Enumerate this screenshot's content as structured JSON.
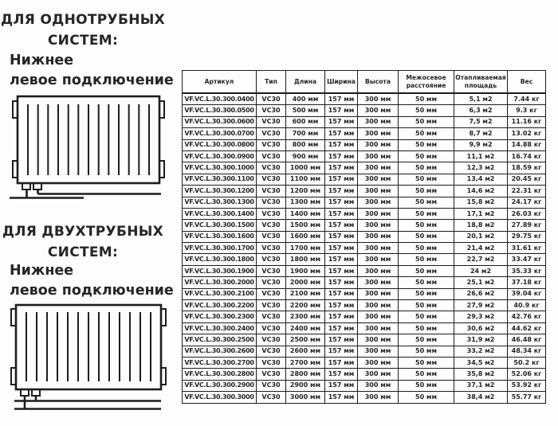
{
  "colors": {
    "text": "#262626",
    "border": "#1d1d1d",
    "background": "#ffffff"
  },
  "sections": [
    {
      "title_line1": "ДЛЯ ОДНОТРУБНЫХ",
      "title_line2": "СИСТЕМ:",
      "subtitle_line1": "Нижнее",
      "subtitle_line2": "левое подключение",
      "diagram": "radiator-bottom-left-single-pipe"
    },
    {
      "title_line1": "ДЛЯ ДВУХТРУБНЫХ",
      "title_line2": "СИСТЕМ:",
      "subtitle_line1": "Нижнее",
      "subtitle_line2": "левое подключение",
      "diagram": "radiator-bottom-left-two-pipe"
    }
  ],
  "table": {
    "headers": [
      "Артикул",
      "Тип",
      "Длина",
      "Ширина",
      "Высота",
      "Межосевое расстояние",
      "Отапливаемая площадь",
      "Вес"
    ],
    "rows": [
      [
        "VF.VC.L.30.300.0400",
        "VC30",
        "400 мм",
        "157 мм",
        "300 мм",
        "50 мм",
        "5,1 м2",
        "7.44 кг"
      ],
      [
        "VF.VC.L.30.300.0500",
        "VC30",
        "500 мм",
        "157 мм",
        "300 мм",
        "50 мм",
        "6,3 м2",
        "9.3 кг"
      ],
      [
        "VF.VC.L.30.300.0600",
        "VC30",
        "600 мм",
        "157 мм",
        "300 мм",
        "50 мм",
        "7,5 м2",
        "11.16 кг"
      ],
      [
        "VF.VC.L.30.300.0700",
        "VC30",
        "700 мм",
        "157 мм",
        "300 мм",
        "50 мм",
        "8,7 м2",
        "13.02 кг"
      ],
      [
        "VF.VC.L.30.300.0800",
        "VC30",
        "800 мм",
        "157 мм",
        "300 мм",
        "50 мм",
        "9,9 м2",
        "14.88 кг"
      ],
      [
        "VF.VC.L.30.300.0900",
        "VC30",
        "900 мм",
        "157 мм",
        "300 мм",
        "50 мм",
        "11,1 м2",
        "16.74 кг"
      ],
      [
        "VF.VC.L.30.300.1000",
        "VC30",
        "1000 мм",
        "157 мм",
        "300 мм",
        "50 мм",
        "12,3 м2",
        "18.59 кг"
      ],
      [
        "VF.VC.L.30.300.1100",
        "VC30",
        "1100 мм",
        "157 мм",
        "300 мм",
        "50 мм",
        "13,4 м2",
        "20.45 кг"
      ],
      [
        "VF.VC.L.30.300.1200",
        "VC30",
        "1200 мм",
        "157 мм",
        "300 мм",
        "50 мм",
        "14,6 м2",
        "22.31 кг"
      ],
      [
        "VF.VC.L.30.300.1300",
        "VC30",
        "1300 мм",
        "157 мм",
        "300 мм",
        "50 мм",
        "15,8 м2",
        "24.17 кг"
      ],
      [
        "VF.VC.L.30.300.1400",
        "VC30",
        "1400 мм",
        "157 мм",
        "300 мм",
        "50 мм",
        "17,1 м2",
        "26.03 кг"
      ],
      [
        "VF.VC.L.30.300.1500",
        "VC30",
        "1500 мм",
        "157 мм",
        "300 мм",
        "50 мм",
        "18,8 м2",
        "27.89 кг"
      ],
      [
        "VF.VC.L.30.300.1600",
        "VC30",
        "1600 мм",
        "157 мм",
        "300 мм",
        "50 мм",
        "20,1 м2",
        "29.75 кг"
      ],
      [
        "VF.VC.L.30.300.1700",
        "VC30",
        "1700 мм",
        "157 мм",
        "300 мм",
        "50 мм",
        "21,4 м2",
        "31.61 кг"
      ],
      [
        "VF.VC.L.30.300.1800",
        "VC30",
        "1800 мм",
        "157 мм",
        "300 мм",
        "50 мм",
        "22,7 м2",
        "33.47 кг"
      ],
      [
        "VF.VC.L.30.300.1900",
        "VC30",
        "1900 мм",
        "157 мм",
        "300 мм",
        "50 мм",
        "24 м2",
        "35.33 кг"
      ],
      [
        "VF.VC.L.30.300.2000",
        "VC30",
        "2000 мм",
        "157 мм",
        "300 мм",
        "50 мм",
        "25,1 м2",
        "37.18 кг"
      ],
      [
        "VF.VC.L.30.300.2100",
        "VC30",
        "2100 мм",
        "157 мм",
        "300 мм",
        "50 мм",
        "26,6 м2",
        "39.04 кг"
      ],
      [
        "VF.VC.L.30.300.2200",
        "VC30",
        "2200 мм",
        "157 мм",
        "300 мм",
        "50 мм",
        "27,9 м2",
        "40.9 кг"
      ],
      [
        "VF.VC.L.30.300.2300",
        "VC30",
        "2300 мм",
        "157 мм",
        "300 мм",
        "50 мм",
        "29,3 м2",
        "42.76 кг"
      ],
      [
        "VF.VC.L.30.300.2400",
        "VC30",
        "2400 мм",
        "157 мм",
        "300 мм",
        "50 мм",
        "30,6 м2",
        "44.62 кг"
      ],
      [
        "VF.VC.L.30.300.2500",
        "VC30",
        "2500 мм",
        "157 мм",
        "300 мм",
        "50 мм",
        "31,9 м2",
        "46.48 кг"
      ],
      [
        "VF.VC.L.30.300.2600",
        "VC30",
        "2600 мм",
        "157 мм",
        "300 мм",
        "50 мм",
        "33,2 м2",
        "48.34 кг"
      ],
      [
        "VF.VC.L.30.300.2700",
        "VC30",
        "2700 мм",
        "157 мм",
        "300 мм",
        "50 мм",
        "34,5 м2",
        "50.2 кг"
      ],
      [
        "VF.VC.L.30.300.2800",
        "VC30",
        "2800 мм",
        "157 мм",
        "300 мм",
        "50 мм",
        "35,8 м2",
        "52.06 кг"
      ],
      [
        "VF.VC.L.30.300.2900",
        "VC30",
        "2900 мм",
        "157 мм",
        "300 мм",
        "50 мм",
        "37,1 м2",
        "53.92 кг"
      ],
      [
        "VF.VC.L.30.300.3000",
        "VC30",
        "3000 мм",
        "157 мм",
        "300 мм",
        "50 мм",
        "38,4 м2",
        "55.77 кг"
      ]
    ]
  }
}
